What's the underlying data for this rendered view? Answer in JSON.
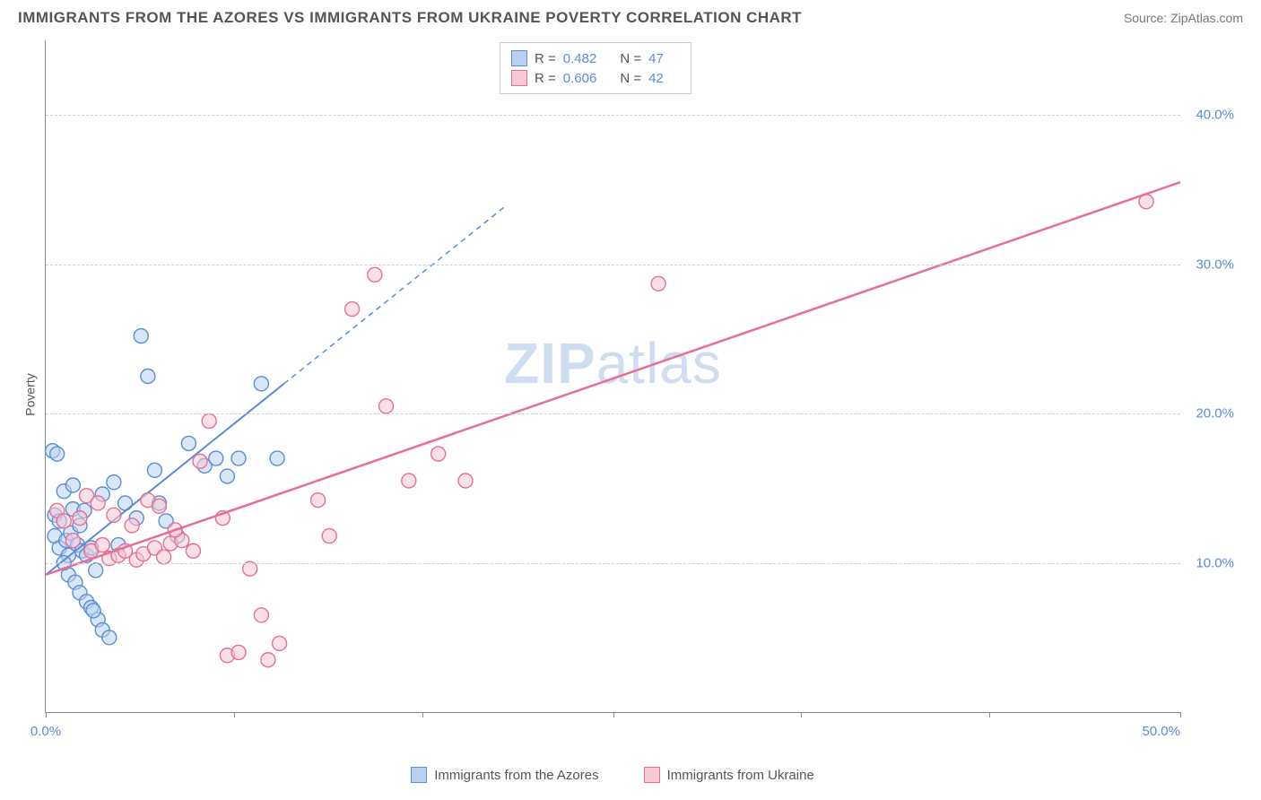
{
  "title": "IMMIGRANTS FROM THE AZORES VS IMMIGRANTS FROM UKRAINE POVERTY CORRELATION CHART",
  "source_prefix": "Source: ",
  "source": "ZipAtlas.com",
  "watermark_a": "ZIP",
  "watermark_b": "atlas",
  "ylabel": "Poverty",
  "legend_top": {
    "rows": [
      {
        "r_label": "R =",
        "r": "0.482",
        "n_label": "N =",
        "n": "47",
        "swatch_fill": "#b9d1ef",
        "swatch_border": "#5b8dd6"
      },
      {
        "r_label": "R =",
        "r": "0.606",
        "n_label": "N =",
        "n": "42",
        "swatch_fill": "#f6c9d5",
        "swatch_border": "#e76f94"
      }
    ]
  },
  "legend_bottom": {
    "items": [
      {
        "label": "Immigrants from the Azores",
        "swatch_fill": "#b9d1ef",
        "swatch_border": "#5b8dd6"
      },
      {
        "label": "Immigrants from Ukraine",
        "swatch_fill": "#f6c9d5",
        "swatch_border": "#e76f94"
      }
    ]
  },
  "chart": {
    "type": "scatter",
    "background_color": "#ffffff",
    "grid_color": "#d0d0d0",
    "axis_color": "#888888",
    "xlim": [
      0,
      50
    ],
    "ylim": [
      0,
      45
    ],
    "xticks": [
      0,
      8.3,
      16.6,
      25,
      33.3,
      41.6,
      50
    ],
    "xtick_labels": {
      "0": "0.0%",
      "50": "50.0%"
    },
    "yticks": [
      10,
      20,
      30,
      40
    ],
    "ytick_labels": [
      "10.0%",
      "20.0%",
      "30.0%",
      "40.0%"
    ],
    "marker_radius": 8,
    "marker_opacity": 0.55,
    "series": [
      {
        "name": "azores",
        "color_fill": "#b9d1ef",
        "color_stroke": "#5b8dd6",
        "trend": {
          "from": [
            0,
            9.2
          ],
          "to": [
            10.5,
            22
          ],
          "extend_to_x": 20.2,
          "dash": "6,5",
          "width": 2
        },
        "points": [
          [
            0.3,
            17.5
          ],
          [
            0.5,
            17.3
          ],
          [
            0.4,
            13.2
          ],
          [
            0.4,
            11.8
          ],
          [
            0.6,
            11.0
          ],
          [
            0.9,
            11.5
          ],
          [
            1.1,
            12.0
          ],
          [
            1.2,
            13.6
          ],
          [
            1.4,
            11.2
          ],
          [
            1.6,
            10.8
          ],
          [
            1.8,
            10.5
          ],
          [
            2.0,
            11.0
          ],
          [
            1.0,
            9.2
          ],
          [
            1.3,
            8.7
          ],
          [
            1.5,
            8.0
          ],
          [
            1.8,
            7.4
          ],
          [
            2.0,
            7.0
          ],
          [
            2.3,
            6.2
          ],
          [
            2.5,
            5.5
          ],
          [
            2.8,
            5.0
          ],
          [
            2.1,
            6.8
          ],
          [
            0.8,
            14.8
          ],
          [
            1.2,
            15.2
          ],
          [
            2.5,
            14.6
          ],
          [
            3.0,
            15.4
          ],
          [
            3.5,
            14.0
          ],
          [
            4.0,
            13.0
          ],
          [
            4.2,
            25.2
          ],
          [
            4.5,
            22.5
          ],
          [
            5.0,
            14.0
          ],
          [
            5.3,
            12.8
          ],
          [
            5.8,
            11.8
          ],
          [
            6.3,
            18.0
          ],
          [
            7.0,
            16.5
          ],
          [
            7.5,
            17.0
          ],
          [
            8.0,
            15.8
          ],
          [
            8.5,
            17.0
          ],
          [
            9.5,
            22.0
          ],
          [
            10.2,
            17.0
          ],
          [
            1.0,
            10.5
          ],
          [
            1.5,
            12.5
          ],
          [
            0.6,
            12.8
          ],
          [
            0.8,
            10.0
          ],
          [
            2.2,
            9.5
          ],
          [
            1.7,
            13.5
          ],
          [
            3.2,
            11.2
          ],
          [
            4.8,
            16.2
          ]
        ]
      },
      {
        "name": "ukraine",
        "color_fill": "#f6c9d5",
        "color_stroke": "#e76f94",
        "trend": {
          "from": [
            0,
            9.2
          ],
          "to": [
            50,
            35.5
          ],
          "width": 2.5
        },
        "points": [
          [
            0.5,
            13.5
          ],
          [
            0.8,
            12.8
          ],
          [
            1.2,
            11.5
          ],
          [
            1.5,
            13.0
          ],
          [
            2.0,
            10.8
          ],
          [
            2.5,
            11.2
          ],
          [
            2.8,
            10.3
          ],
          [
            3.2,
            10.5
          ],
          [
            3.5,
            10.8
          ],
          [
            4.0,
            10.2
          ],
          [
            4.3,
            10.6
          ],
          [
            4.8,
            11.0
          ],
          [
            5.2,
            10.4
          ],
          [
            5.5,
            11.3
          ],
          [
            6.0,
            11.5
          ],
          [
            6.5,
            10.8
          ],
          [
            7.2,
            19.5
          ],
          [
            7.8,
            13.0
          ],
          [
            8.0,
            3.8
          ],
          [
            8.5,
            4.0
          ],
          [
            9.8,
            3.5
          ],
          [
            10.3,
            4.6
          ],
          [
            9.0,
            9.6
          ],
          [
            9.5,
            6.5
          ],
          [
            12.0,
            14.2
          ],
          [
            12.5,
            11.8
          ],
          [
            13.5,
            27.0
          ],
          [
            14.5,
            29.3
          ],
          [
            15.0,
            20.5
          ],
          [
            16.0,
            15.5
          ],
          [
            17.3,
            17.3
          ],
          [
            18.5,
            15.5
          ],
          [
            27.0,
            28.7
          ],
          [
            48.5,
            34.2
          ],
          [
            1.8,
            14.5
          ],
          [
            2.3,
            14.0
          ],
          [
            3.0,
            13.2
          ],
          [
            3.8,
            12.5
          ],
          [
            4.5,
            14.2
          ],
          [
            5.0,
            13.8
          ],
          [
            5.7,
            12.2
          ],
          [
            6.8,
            16.8
          ]
        ]
      }
    ]
  }
}
